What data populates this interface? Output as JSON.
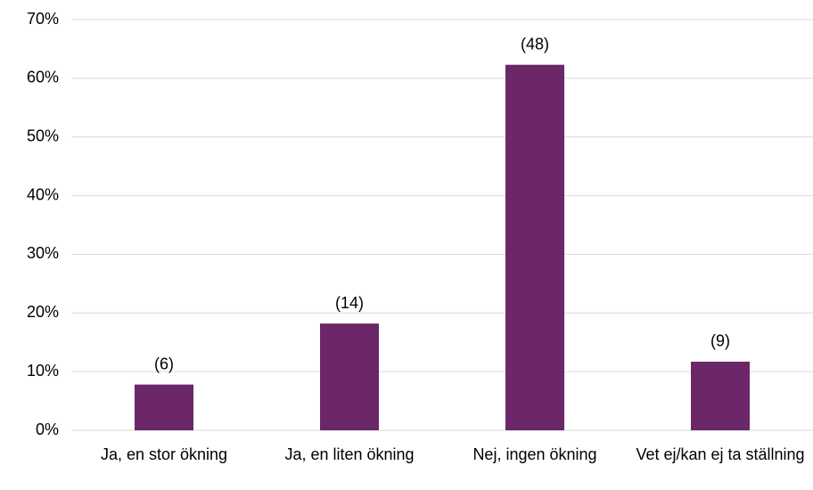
{
  "chart_data": {
    "type": "bar",
    "categories": [
      "Ja, en stor ökning",
      "Ja, en liten ökning",
      "Nej, ingen ökning",
      "Vet ej/kan ej ta ställning"
    ],
    "values": [
      7.8,
      18.2,
      62.3,
      11.7
    ],
    "annotations": [
      "(6)",
      "(14)",
      "(48)",
      "(9)"
    ],
    "color": "#6b2768",
    "ylim": [
      0,
      70
    ],
    "yticks": [
      {
        "value": 0,
        "label": "0%"
      },
      {
        "value": 10,
        "label": "10%"
      },
      {
        "value": 20,
        "label": "20%"
      },
      {
        "value": 30,
        "label": "30%"
      },
      {
        "value": 40,
        "label": "40%"
      },
      {
        "value": 50,
        "label": "50%"
      },
      {
        "value": 60,
        "label": "60%"
      },
      {
        "value": 70,
        "label": "70%"
      }
    ],
    "grid": true
  }
}
